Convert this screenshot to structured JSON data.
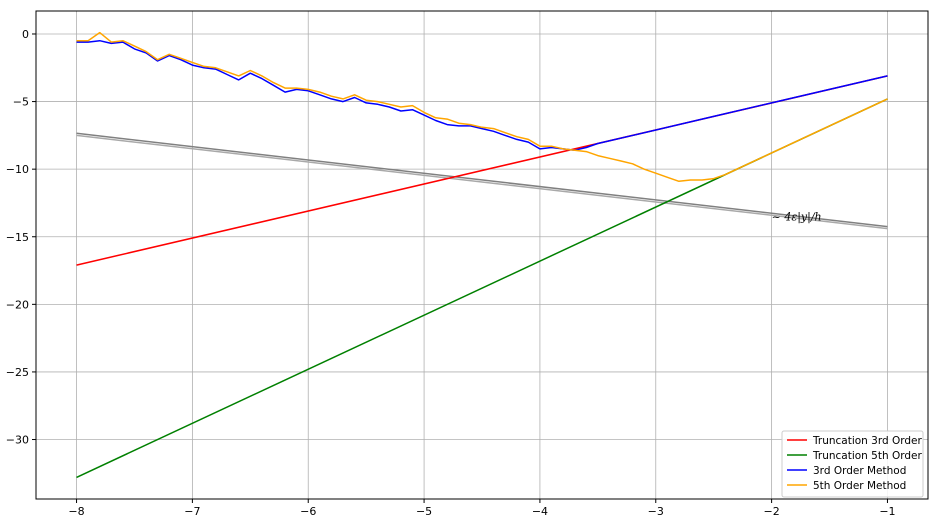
{
  "chart_data": {
    "type": "line",
    "title": "",
    "xlabel": "",
    "ylabel": "",
    "xlim": [
      -8.35,
      -0.65
    ],
    "ylim": [
      -34.4,
      1.7
    ],
    "xticks": [
      -8,
      -7,
      -6,
      -5,
      -4,
      -3,
      -2,
      -1
    ],
    "yticks": [
      0,
      -5,
      -10,
      -15,
      -20,
      -25,
      -30
    ],
    "grid": true,
    "legend_position": "bottom-right",
    "annotation": {
      "text": "~ 4ε|y|/h",
      "x": -2.0,
      "y": -13.8
    },
    "series": [
      {
        "name": "Truncation 3rd Order",
        "color": "#ff0000",
        "x": [
          -8,
          -1
        ],
        "y": [
          -17.1,
          -3.1
        ]
      },
      {
        "name": "Truncation 5th Order",
        "color": "#008000",
        "x": [
          -8,
          -1
        ],
        "y": [
          -32.8,
          -4.8
        ]
      },
      {
        "name": "3rd Order Method",
        "color": "#0000ff",
        "x": [
          -8,
          -7.9,
          -7.8,
          -7.7,
          -7.6,
          -7.5,
          -7.4,
          -7.3,
          -7.2,
          -7.1,
          -7.0,
          -6.9,
          -6.8,
          -6.7,
          -6.6,
          -6.5,
          -6.4,
          -6.3,
          -6.2,
          -6.1,
          -6.0,
          -5.9,
          -5.8,
          -5.7,
          -5.6,
          -5.5,
          -5.4,
          -5.3,
          -5.2,
          -5.1,
          -5.0,
          -4.9,
          -4.8,
          -4.7,
          -4.6,
          -4.5,
          -4.4,
          -4.3,
          -4.2,
          -4.1,
          -4.0,
          -3.9,
          -3.8,
          -3.7,
          -3.6,
          -3.5,
          -3.0,
          -2.5,
          -2.0,
          -1.5,
          -1.0
        ],
        "y": [
          -0.6,
          -0.6,
          -0.5,
          -0.7,
          -0.6,
          -1.1,
          -1.4,
          -2.0,
          -1.6,
          -1.9,
          -2.3,
          -2.5,
          -2.6,
          -3.0,
          -3.4,
          -2.9,
          -3.3,
          -3.8,
          -4.3,
          -4.1,
          -4.2,
          -4.5,
          -4.8,
          -5.0,
          -4.7,
          -5.1,
          -5.2,
          -5.4,
          -5.7,
          -5.6,
          -6.0,
          -6.4,
          -6.7,
          -6.8,
          -6.8,
          -7.0,
          -7.2,
          -7.5,
          -7.8,
          -8.0,
          -8.5,
          -8.4,
          -8.5,
          -8.6,
          -8.4,
          -8.1,
          -7.1,
          -6.1,
          -5.1,
          -4.1,
          -3.1
        ]
      },
      {
        "name": "5th Order Method",
        "color": "#ffa500",
        "x": [
          -8,
          -7.9,
          -7.8,
          -7.7,
          -7.6,
          -7.5,
          -7.4,
          -7.3,
          -7.2,
          -7.1,
          -7.0,
          -6.9,
          -6.8,
          -6.7,
          -6.6,
          -6.5,
          -6.4,
          -6.3,
          -6.2,
          -6.1,
          -6.0,
          -5.9,
          -5.8,
          -5.7,
          -5.6,
          -5.5,
          -5.4,
          -5.3,
          -5.2,
          -5.1,
          -5.0,
          -4.9,
          -4.8,
          -4.7,
          -4.6,
          -4.5,
          -4.4,
          -4.3,
          -4.2,
          -4.1,
          -4.0,
          -3.9,
          -3.8,
          -3.7,
          -3.6,
          -3.5,
          -3.4,
          -3.3,
          -3.2,
          -3.1,
          -3.0,
          -2.9,
          -2.8,
          -2.7,
          -2.6,
          -2.5,
          -2.4,
          -2.0,
          -1.5,
          -1.0
        ],
        "y": [
          -0.5,
          -0.5,
          0.1,
          -0.6,
          -0.5,
          -0.9,
          -1.3,
          -1.9,
          -1.5,
          -1.8,
          -2.1,
          -2.4,
          -2.5,
          -2.8,
          -3.1,
          -2.7,
          -3.1,
          -3.6,
          -4.0,
          -4.0,
          -4.1,
          -4.3,
          -4.6,
          -4.8,
          -4.5,
          -4.9,
          -5.0,
          -5.2,
          -5.4,
          -5.3,
          -5.8,
          -6.2,
          -6.3,
          -6.6,
          -6.7,
          -6.9,
          -7.0,
          -7.3,
          -7.6,
          -7.8,
          -8.3,
          -8.3,
          -8.5,
          -8.6,
          -8.7,
          -9.0,
          -9.2,
          -9.4,
          -9.6,
          -10.0,
          -10.3,
          -10.6,
          -10.9,
          -10.8,
          -10.8,
          -10.7,
          -10.4,
          -8.8,
          -6.8,
          -4.8
        ]
      },
      {
        "name": "",
        "color": "#808080",
        "x": [
          -8,
          -1
        ],
        "y": [
          -7.35,
          -14.25
        ]
      },
      {
        "name": "",
        "color": "#a9a9a9",
        "x": [
          -8,
          -1
        ],
        "y": [
          -7.5,
          -14.4
        ]
      }
    ]
  }
}
